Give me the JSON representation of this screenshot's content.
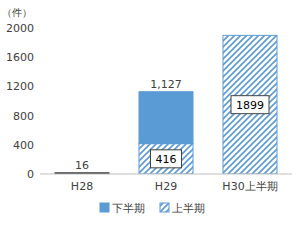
{
  "chart_data": {
    "type": "bar",
    "stacked": true,
    "y_label": "（件）",
    "categories": [
      "H28",
      "H29",
      "H30上半期"
    ],
    "series": [
      {
        "name": "上半期",
        "color": "#5B9BD5",
        "values": [
          null,
          416,
          1899
        ],
        "data_labels": true
      },
      {
        "name": "下半期",
        "color": "#5B9BD5",
        "values": [
          null,
          711,
          null
        ]
      }
    ],
    "totals": [
      16,
      1127,
      null
    ],
    "total_labels": [
      "16",
      "1,127",
      null
    ],
    "ylim": [
      0,
      2000
    ],
    "yticks": [
      0,
      400,
      800,
      1200,
      1600,
      2000
    ],
    "grid": false,
    "legend": "bottom"
  }
}
